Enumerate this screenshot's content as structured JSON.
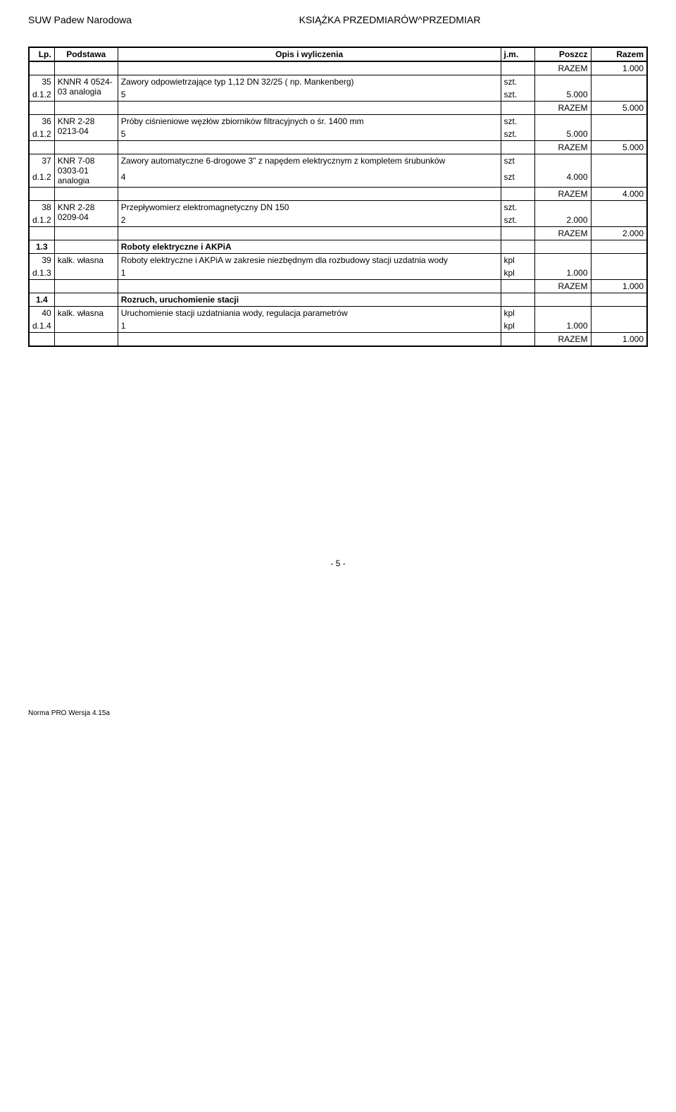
{
  "header": {
    "left": "SUW Padew Narodowa",
    "center": "KSIĄŻKA PRZEDMIARÓW^PRZEDMIAR"
  },
  "columns": {
    "lp": "Lp.",
    "podstawa": "Podstawa",
    "opis": "Opis i wyliczenia",
    "jm": "j.m.",
    "poszcz": "Poszcz",
    "razem": "Razem"
  },
  "rows": {
    "r35": {
      "lp": "35",
      "podstawa": "KNNR 4 0524-03 analogia",
      "opis": "Zawory odpowietrzające  typ 1,12  DN 32/25 ( np. Mankenberg)",
      "jm": "szt.",
      "calc": "5",
      "calc_jm": "szt.",
      "poszcz": "5.000",
      "razem_label": "RAZEM",
      "razem_pre": "1.000",
      "razem": "5.000"
    },
    "r36": {
      "lp": "36",
      "podstawa": "KNR 2-28 0213-04",
      "opis": "Próby ciśnieniowe węzłów zbiorników filtracyjnych o śr. 1400 mm",
      "jm": "szt.",
      "calc": "5",
      "calc_jm": "szt.",
      "poszcz": "5.000",
      "razem_label": "RAZEM",
      "razem": "5.000"
    },
    "r37": {
      "lp": "37",
      "podstawa": "KNR 7-08 0303-01 analogia",
      "opis": "Zawory automatyczne 6-drogowe 3\" z napędem elektrycznym z kompletem śrubunków",
      "jm": "szt",
      "calc": "4",
      "calc_jm": "szt",
      "poszcz": "4.000",
      "razem_label": "RAZEM",
      "razem": "4.000"
    },
    "r38": {
      "lp": "38",
      "podstawa": "KNR 2-28 0209-04",
      "opis": "Przepływomierz elektromagnetyczny DN 150",
      "jm": "szt.",
      "calc": "2",
      "calc_jm": "szt.",
      "poszcz": "2.000",
      "razem_label": "RAZEM",
      "razem": "2.000"
    },
    "s13": {
      "lp": "1.3",
      "title": "Roboty elektryczne i AKPiA"
    },
    "r39": {
      "lp": "39",
      "podstawa": "kalk. własna",
      "podstawa_pre": "d.1.3",
      "opis": "Roboty elektryczne i AKPiA w zakresie niezbędnym dla rozbudowy stacji uzdatnia wody",
      "jm": "kpl",
      "calc": "1",
      "calc_jm": "kpl",
      "poszcz": "1.000",
      "razem_label": "RAZEM",
      "razem": "1.000"
    },
    "s14": {
      "lp": "1.4",
      "title": "Rozruch, uruchomienie stacji"
    },
    "r40": {
      "lp": "40",
      "podstawa": "kalk. własna",
      "podstawa_pre": "d.1.4",
      "opis": "Uruchomienie stacji uzdatniania wody, regulacja parametrów",
      "jm": "kpl",
      "calc": "1",
      "calc_jm": "kpl",
      "poszcz": "1.000",
      "razem_label": "RAZEM",
      "razem": "1.000"
    },
    "d12": "d.1.2"
  },
  "page_number": "- 5 -",
  "footer": "Norma PRO Wersja 4.15a",
  "styling": {
    "font_family": "Arial, sans-serif",
    "font_size_body": 12,
    "font_size_header": 14,
    "border_color": "#000000",
    "background_color": "#ffffff",
    "col_widths": {
      "lp": 36,
      "podstawa": 90,
      "jm": 48,
      "poszcz": 80,
      "razem": 80
    }
  }
}
